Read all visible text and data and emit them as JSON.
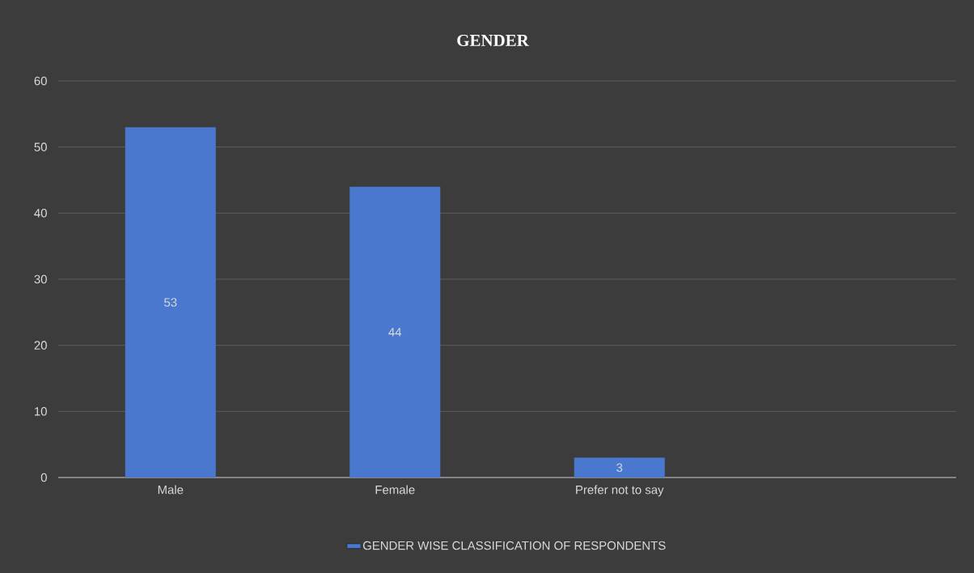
{
  "chart_data": {
    "type": "bar",
    "title": "GENDER",
    "categories": [
      "Male",
      "Female",
      "Prefer not to say",
      null
    ],
    "series": [
      {
        "name": "GENDER WISE CLASSIFICATION OF RESPONDENTS",
        "color": "#4a78cf",
        "values": [
          53,
          44,
          3,
          null
        ]
      }
    ],
    "ylim": [
      0,
      60
    ],
    "yticks": [
      0,
      10,
      20,
      30,
      40,
      50,
      60
    ],
    "grid": "y",
    "legend": "bottom",
    "data_labels": true
  }
}
